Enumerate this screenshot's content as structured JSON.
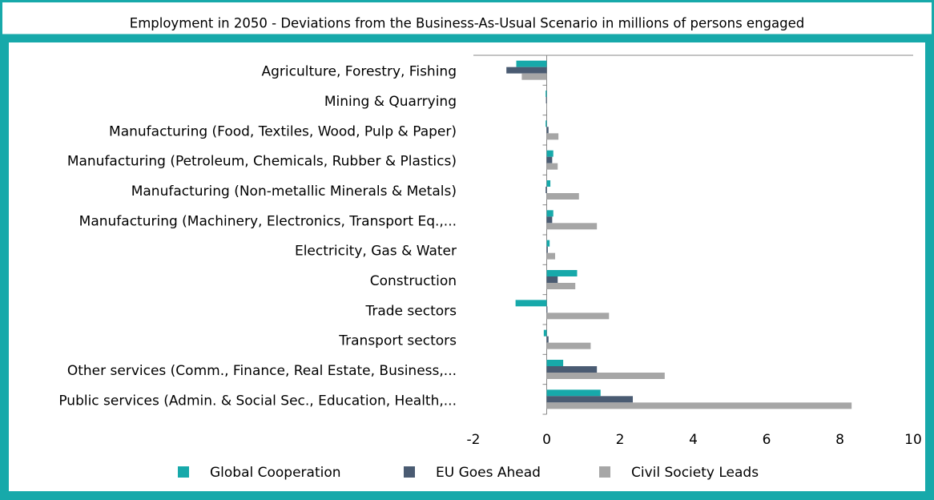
{
  "chart_data": {
    "type": "hbar",
    "title": "Employment in 2050 - Deviations from the Business-As-Usual Scenario in millions of persons engaged",
    "categories": [
      "Agriculture, Forestry, Fishing",
      "Mining & Quarrying",
      "Manufacturing (Food, Textiles, Wood, Pulp & Paper)",
      "Manufacturing (Petroleum, Chemicals, Rubber & Plastics)",
      "Manufacturing (Non-metallic Minerals & Metals)",
      "Manufacturing (Machinery, Electronics, Transport Eq.,...",
      "Electricity, Gas & Water",
      "Construction",
      "Trade sectors",
      "Transport sectors",
      "Other services (Comm., Finance, Real Estate, Business,...",
      "Public services (Admin. & Social Sec., Education, Health,..."
    ],
    "series": [
      {
        "name": "Global Cooperation",
        "color": "#17a9aa",
        "values": [
          -0.83,
          -0.03,
          -0.03,
          0.18,
          0.1,
          0.18,
          0.08,
          0.83,
          -0.85,
          -0.08,
          0.45,
          1.47
        ]
      },
      {
        "name": "EU Goes Ahead",
        "color": "#4a5b72",
        "values": [
          -1.1,
          -0.02,
          0.05,
          0.15,
          -0.03,
          0.15,
          0.03,
          0.3,
          0.02,
          0.05,
          1.37,
          2.35
        ]
      },
      {
        "name": "Civil Society Leads",
        "color": "#a6a6a6",
        "values": [
          -0.68,
          -0.01,
          0.32,
          0.3,
          0.88,
          1.37,
          0.23,
          0.78,
          1.7,
          1.2,
          3.22,
          8.32
        ]
      }
    ],
    "xlim": [
      -2,
      10
    ],
    "xticks": [
      -2,
      0,
      2,
      4,
      6,
      8,
      10
    ]
  }
}
